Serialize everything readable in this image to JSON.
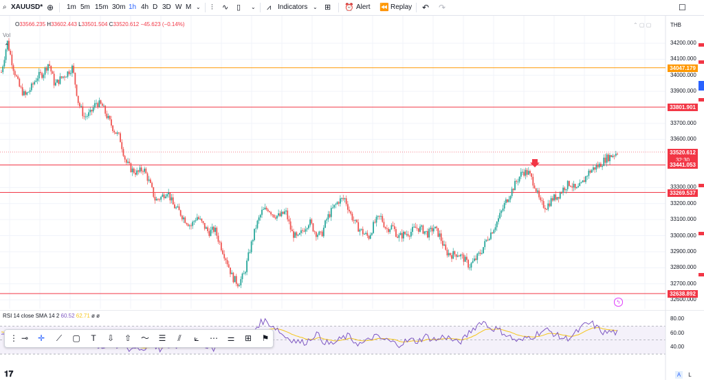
{
  "toolbar": {
    "symbol": "XAUUSD*",
    "intervals": [
      "1m",
      "5m",
      "15m",
      "30m",
      "1h",
      "4h",
      "D",
      "3D",
      "W",
      "M"
    ],
    "active_interval": "1h",
    "indicators_label": "Indicators",
    "alert_label": "Alert",
    "replay_label": "Replay",
    "icons": [
      "add-symbol-icon",
      "chevron-down-icon",
      "bar-style-icon",
      "line-style-icon",
      "candle-style-icon",
      "chevron-down-icon",
      "indicators-icon",
      "chevron-down-icon",
      "layouts-grid-icon",
      "alert-clock-icon",
      "replay-rewind-icon",
      "undo-icon",
      "redo-icon",
      "fullscreen-icon"
    ]
  },
  "legend": {
    "ohlc": [
      {
        "key": "O",
        "value": "33566.235"
      },
      {
        "key": "H",
        "value": "33602.443"
      },
      {
        "key": "L",
        "value": "33501.504"
      },
      {
        "key": "C",
        "value": "33520.612"
      }
    ],
    "change": "−45.623 (−0.14%)",
    "volume_label": "Vol"
  },
  "price_axis": {
    "currency": "THB",
    "ticks": [
      {
        "label": "34200.000",
        "price": 34200
      },
      {
        "label": "34100.000",
        "price": 34100
      },
      {
        "label": "34000.000",
        "price": 34000
      },
      {
        "label": "33900.000",
        "price": 33900
      },
      {
        "label": "33700.000",
        "price": 33700
      },
      {
        "label": "33600.000",
        "price": 33600
      },
      {
        "label": "33300.000",
        "price": 33300
      },
      {
        "label": "33200.000",
        "price": 33200
      },
      {
        "label": "33100.000",
        "price": 33100
      },
      {
        "label": "33000.000",
        "price": 33000
      },
      {
        "label": "32900.000",
        "price": 32900
      },
      {
        "label": "32800.000",
        "price": 32800
      },
      {
        "label": "32700.000",
        "price": 32700
      },
      {
        "label": "32600.000",
        "price": 32600
      }
    ],
    "tags": [
      {
        "label": "34047.179",
        "price": 34047.179,
        "color": "#ff9800"
      },
      {
        "label": "33801.901",
        "price": 33801.901,
        "color": "#f23645"
      },
      {
        "label": "33520.612",
        "sub": "32:30",
        "price": 33520.612,
        "color": "#f23645"
      },
      {
        "label": "33441.053",
        "price": 33441.053,
        "color": "#f23645"
      },
      {
        "label": "33269.537",
        "price": 33269.537,
        "color": "#f23645"
      },
      {
        "label": "32638.892",
        "price": 32638.892,
        "color": "#f23645"
      }
    ]
  },
  "horizontal_lines": [
    {
      "price": 34047.179,
      "color": "#ff9800"
    },
    {
      "price": 33801.901,
      "color": "#f23645"
    },
    {
      "price": 33441.053,
      "color": "#f23645"
    },
    {
      "price": 33269.537,
      "color": "#f23645"
    },
    {
      "price": 32638.892,
      "color": "#f23645"
    }
  ],
  "colors": {
    "up": "#26a69a",
    "down": "#ef5350",
    "accent": "#2962ff",
    "rsi_line": "#7e57c2",
    "rsi_sma": "#f5c518"
  },
  "rsi": {
    "title": "RSI 14 close SMA 14 2",
    "rsi_value": "60.52",
    "sma_value": "62.71",
    "extra": "ø ø",
    "ticks": [
      {
        "label": "80.00",
        "value": 80
      },
      {
        "label": "60.00",
        "value": 60
      },
      {
        "label": "40.00",
        "value": 40
      }
    ]
  },
  "drawing_tools": [
    "cursor-crosshair-icon",
    "crosshair-icon",
    "trend-line-icon",
    "rectangle-icon",
    "text-icon",
    "arrow-down-icon",
    "arrow-up-icon",
    "path-icon",
    "horizontal-lines-icon",
    "parallel-channel-icon",
    "fib-fan-icon",
    "fib-retracement-icon",
    "settings-lines-icon",
    "crosshair-box-icon",
    "flag-icon"
  ],
  "bottom": {
    "auto_label": "A",
    "log_label": "L"
  },
  "series_path": [
    34020,
    34210,
    34050,
    33930,
    33870,
    33920,
    33990,
    34010,
    34080,
    33940,
    33980,
    34010,
    34050,
    33830,
    33740,
    33760,
    33830,
    33810,
    33730,
    33660,
    33610,
    33460,
    33410,
    33390,
    33420,
    33330,
    33220,
    33240,
    33280,
    33190,
    33150,
    33100,
    33060,
    33120,
    33070,
    33020,
    33040,
    32940,
    32850,
    32740,
    32700,
    32760,
    32920,
    33060,
    33150,
    33170,
    33130,
    33120,
    33150,
    33020,
    32980,
    33040,
    33090,
    33020,
    33000,
    33110,
    33170,
    33220,
    33230,
    33130,
    33060,
    33020,
    32990,
    33080,
    33120,
    33040,
    33060,
    32990,
    33010,
    33020,
    33050,
    33040,
    33010,
    33050,
    33000,
    32900,
    32880,
    32890,
    32860,
    32810,
    32850,
    32900,
    32980,
    33040,
    33110,
    33200,
    33270,
    33340,
    33400,
    33390,
    33320,
    33200,
    33180,
    33230,
    33250,
    33300,
    33330,
    33280,
    33320,
    33390,
    33420,
    33440,
    33480,
    33500,
    33520
  ],
  "rsi_path": [
    62,
    52,
    48,
    45,
    55,
    60,
    58,
    50,
    46,
    56,
    61,
    54,
    48,
    44,
    46,
    42,
    40,
    43,
    38,
    42,
    37,
    40,
    36,
    44,
    38,
    36,
    41,
    40,
    44,
    52,
    48,
    50,
    42,
    38,
    46,
    48,
    52,
    50,
    46,
    58,
    72,
    78,
    72,
    66,
    56,
    52,
    48,
    46,
    50,
    60,
    50,
    44,
    46,
    52,
    56,
    48,
    44,
    48,
    56,
    52,
    50,
    46,
    44,
    48,
    50,
    48,
    56,
    52,
    50,
    56,
    52,
    46,
    50,
    62,
    70,
    78,
    68,
    66,
    62,
    56,
    50,
    48,
    54,
    56,
    62,
    64,
    60,
    54,
    52,
    56,
    64,
    72,
    74,
    66,
    60,
    62,
    60
  ]
}
